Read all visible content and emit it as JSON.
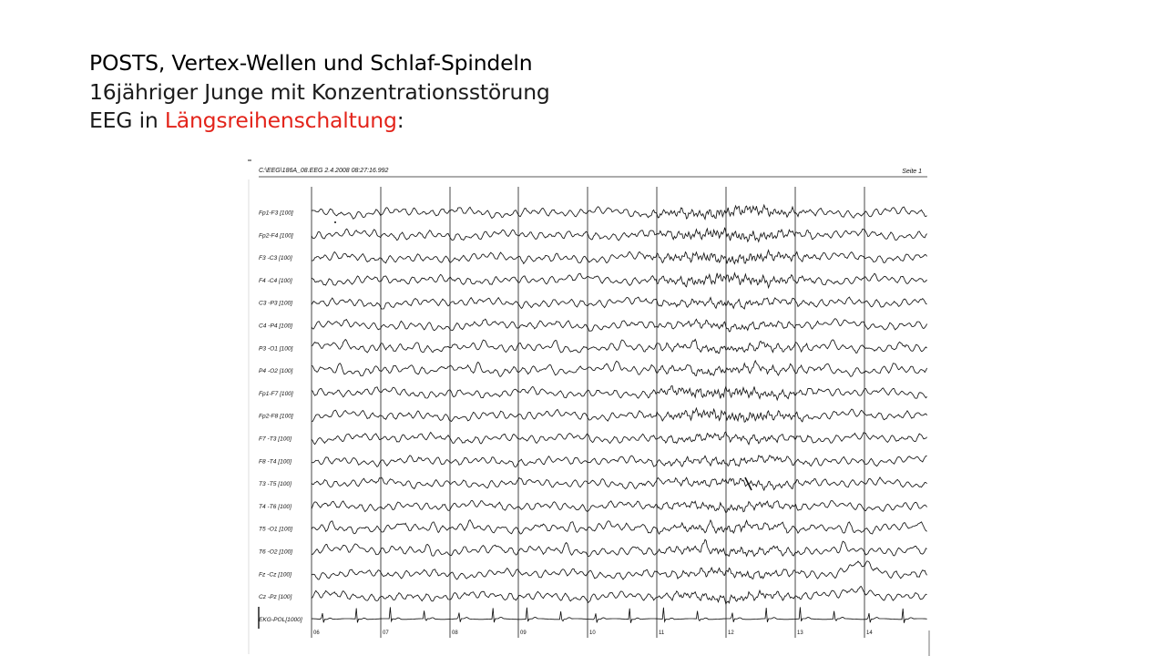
{
  "slide": {
    "title_line1": "POSTS, Vertex-Wellen und Schlaf-Spindeln",
    "title_line2": "16jähriger Junge mit Konzentrationsstörung",
    "title_line3_prefix": "EEG in ",
    "title_line3_highlight": "Längsreihenschaltung",
    "title_line3_suffix": ":",
    "highlight_color": "#e3241b"
  },
  "eeg": {
    "header_left": "C:\\EEG\\186A_08.EEG  2.4.2008  08:27:16.992",
    "header_right": "Seite 1",
    "channels": [
      "Fp1-F3 [100]",
      "Fp2-F4 [100]",
      "F3 -C3 [100]",
      "F4 -C4 [100]",
      "C3 -P3 [100]",
      "C4 -P4 [100]",
      "P3 -O1 [100]",
      "P4 -O2 [100]",
      "Fp1-F7 [100]",
      "Fp2-F8 [100]",
      "F7 -T3 [100]",
      "F8 -T4 [100]",
      "T3 -T5 [100]",
      "T4 -T6 [100]",
      "T5 -O1 [100]",
      "T6 -O2 [100]",
      "Fz -Cz [100]",
      "Cz -Pz [100]",
      "EKG-POL[1000]"
    ],
    "second_markers": [
      "06",
      "07",
      "08",
      "09",
      "10",
      "11",
      "12",
      "13",
      "14"
    ],
    "trace_color": "#111111"
  }
}
